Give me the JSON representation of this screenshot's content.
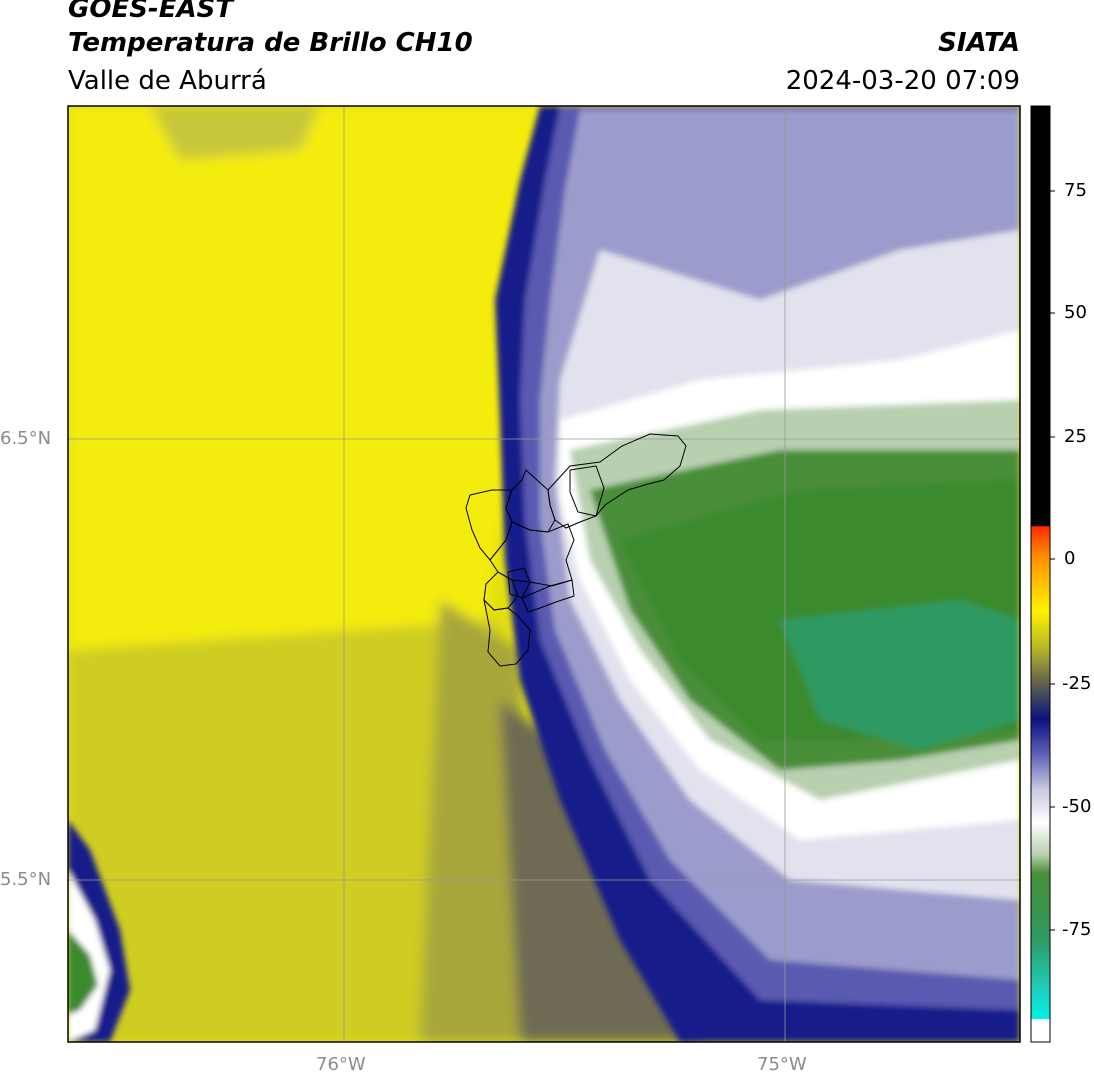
{
  "header": {
    "satellite": "GOES-EAST",
    "product": "Temperatura de Brillo CH10",
    "region": "Valle de Aburrá",
    "agency": "SIATA",
    "datetime": "2024-03-20 07:09"
  },
  "map": {
    "lon_labels": [
      "76°W",
      "75°W"
    ],
    "lat_labels": [
      "6.5°N",
      "5.5°N"
    ]
  },
  "colorbar": {
    "ticks": [
      "75",
      "50",
      "25",
      "0",
      "-25",
      "-50",
      "-75"
    ]
  },
  "colors": {
    "yellow_warm": "#e3e010",
    "yellow_bright": "#fff200",
    "olive": "#b5b42a",
    "dark_olive": "#5a5a50",
    "navy": "#141b8a",
    "lavender": "#9c9ccc",
    "white": "#ffffff",
    "green": "#3a8a2e",
    "sea_green": "#2e9a62",
    "black": "#000000"
  }
}
